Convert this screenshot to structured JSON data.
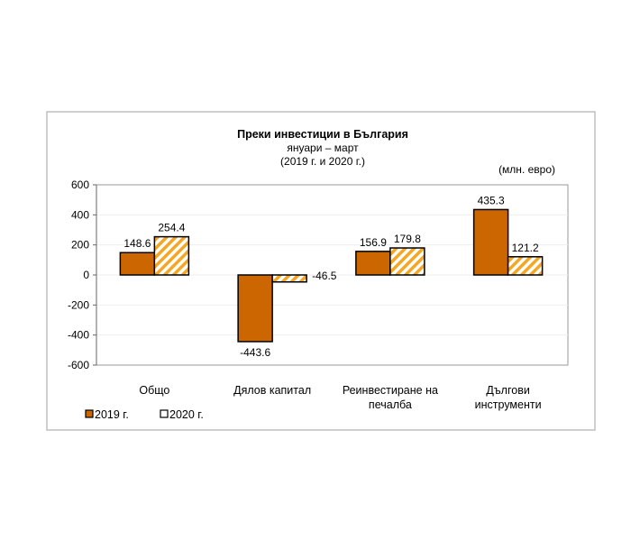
{
  "chart_data": {
    "type": "bar",
    "title": "Преки  инвестиции в България",
    "subtitle_lines": [
      "януари – март",
      "(2019 г. и 2020 г.)"
    ],
    "unit_label": "(млн. евро)",
    "categories": [
      [
        "Общо"
      ],
      [
        "Дялов капитал"
      ],
      [
        "Реинвестиране на",
        "печалба"
      ],
      [
        "Дългови",
        "инструменти"
      ]
    ],
    "series": [
      {
        "name": "2019 г.",
        "values": [
          148.6,
          -443.6,
          156.9,
          435.3
        ],
        "labels": [
          "148.6",
          "-443.6",
          "156.9",
          "435.3"
        ],
        "color": "#cc6600",
        "pattern": "solid"
      },
      {
        "name": "2020 г.",
        "values": [
          254.4,
          -46.5,
          179.8,
          121.2
        ],
        "labels": [
          "254.4",
          "-46.5",
          "179.8",
          "121.2"
        ],
        "color": "#f5a623",
        "pattern": "hatched"
      }
    ],
    "ylim": [
      -600,
      600
    ],
    "yticks": [
      600,
      400,
      200,
      0,
      -200,
      -400,
      -600
    ],
    "ytick_labels": [
      "600",
      "400",
      "200",
      "0",
      "-200",
      "-400",
      "-600"
    ],
    "grid": true,
    "legend_position": "bottom-left"
  }
}
